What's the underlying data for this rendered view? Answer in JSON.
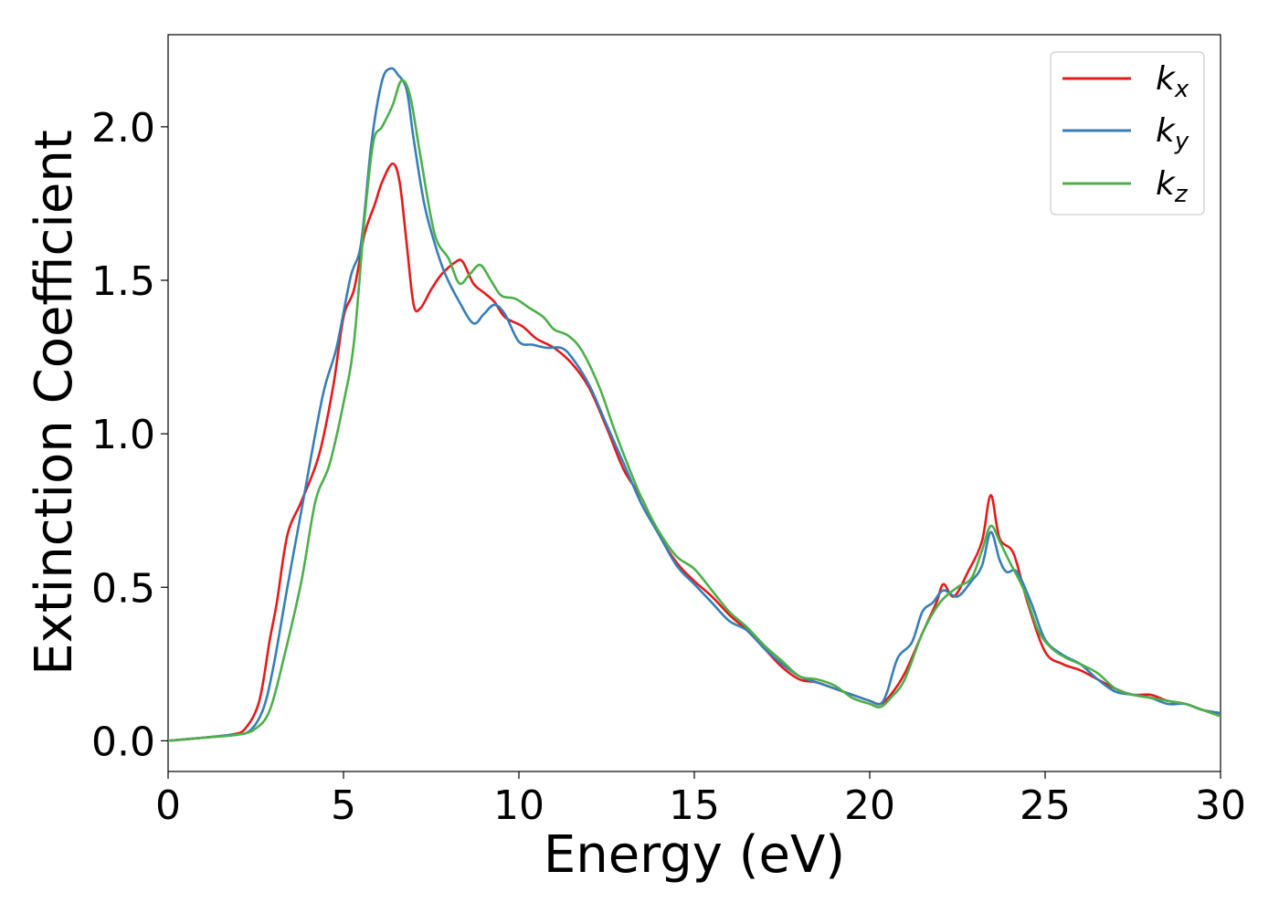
{
  "chart_data": {
    "type": "line",
    "xlabel": "Energy (eV)",
    "ylabel": "Extinction Coefficient",
    "xlim": [
      0,
      30
    ],
    "ylim": [
      -0.1,
      2.3
    ],
    "xticks": [
      0,
      5,
      10,
      15,
      20,
      25,
      30
    ],
    "xtick_labels": [
      "0",
      "5",
      "10",
      "15",
      "20",
      "25",
      "30"
    ],
    "yticks": [
      0.0,
      0.5,
      1.0,
      1.5,
      2.0
    ],
    "ytick_labels": [
      "0.0",
      "0.5",
      "1.0",
      "1.5",
      "2.0"
    ],
    "grid": false,
    "legend_position": "top-right",
    "series": [
      {
        "name": "kx",
        "legend_base": "k",
        "legend_sub": "x",
        "color": "#e41a1c",
        "points": [
          [
            0,
            0
          ],
          [
            1,
            0.01
          ],
          [
            1.8,
            0.02
          ],
          [
            2.2,
            0.04
          ],
          [
            2.6,
            0.13
          ],
          [
            2.9,
            0.33
          ],
          [
            3.1,
            0.45
          ],
          [
            3.4,
            0.67
          ],
          [
            3.8,
            0.78
          ],
          [
            4.3,
            0.93
          ],
          [
            4.7,
            1.15
          ],
          [
            5,
            1.38
          ],
          [
            5.3,
            1.47
          ],
          [
            5.6,
            1.65
          ],
          [
            5.9,
            1.75
          ],
          [
            6.1,
            1.82
          ],
          [
            6.4,
            1.88
          ],
          [
            6.6,
            1.82
          ],
          [
            6.8,
            1.62
          ],
          [
            7,
            1.42
          ],
          [
            7.2,
            1.41
          ],
          [
            7.5,
            1.47
          ],
          [
            7.8,
            1.52
          ],
          [
            8.2,
            1.56
          ],
          [
            8.4,
            1.56
          ],
          [
            8.7,
            1.49
          ],
          [
            9,
            1.46
          ],
          [
            9.3,
            1.43
          ],
          [
            9.6,
            1.38
          ],
          [
            10.1,
            1.35
          ],
          [
            10.5,
            1.31
          ],
          [
            11,
            1.28
          ],
          [
            11.5,
            1.23
          ],
          [
            12,
            1.15
          ],
          [
            12.5,
            1.02
          ],
          [
            13,
            0.88
          ],
          [
            13.5,
            0.79
          ],
          [
            14,
            0.67
          ],
          [
            14.5,
            0.58
          ],
          [
            15,
            0.52
          ],
          [
            15.5,
            0.47
          ],
          [
            16,
            0.41
          ],
          [
            16.5,
            0.36
          ],
          [
            17,
            0.3
          ],
          [
            17.5,
            0.24
          ],
          [
            18,
            0.2
          ],
          [
            18.5,
            0.19
          ],
          [
            19,
            0.17
          ],
          [
            19.5,
            0.15
          ],
          [
            20,
            0.13
          ],
          [
            20.3,
            0.12
          ],
          [
            20.6,
            0.15
          ],
          [
            21,
            0.22
          ],
          [
            21.5,
            0.35
          ],
          [
            21.9,
            0.45
          ],
          [
            22.1,
            0.51
          ],
          [
            22.4,
            0.47
          ],
          [
            22.8,
            0.55
          ],
          [
            23.2,
            0.65
          ],
          [
            23.45,
            0.8
          ],
          [
            23.7,
            0.66
          ],
          [
            24.1,
            0.61
          ],
          [
            24.5,
            0.45
          ],
          [
            25,
            0.29
          ],
          [
            25.5,
            0.25
          ],
          [
            26,
            0.23
          ],
          [
            26.5,
            0.2
          ],
          [
            27,
            0.17
          ],
          [
            27.5,
            0.15
          ],
          [
            28,
            0.15
          ],
          [
            28.5,
            0.13
          ],
          [
            29,
            0.12
          ],
          [
            29.5,
            0.1
          ],
          [
            30,
            0.09
          ]
        ]
      },
      {
        "name": "ky",
        "legend_base": "k",
        "legend_sub": "y",
        "color": "#377eb8",
        "points": [
          [
            0,
            0
          ],
          [
            1,
            0.01
          ],
          [
            1.8,
            0.02
          ],
          [
            2.3,
            0.03
          ],
          [
            2.7,
            0.1
          ],
          [
            3,
            0.24
          ],
          [
            3.4,
            0.5
          ],
          [
            3.8,
            0.75
          ],
          [
            4.4,
            1.12
          ],
          [
            4.8,
            1.28
          ],
          [
            5.2,
            1.51
          ],
          [
            5.5,
            1.62
          ],
          [
            5.8,
            1.95
          ],
          [
            6.1,
            2.15
          ],
          [
            6.35,
            2.19
          ],
          [
            6.55,
            2.17
          ],
          [
            6.8,
            2.12
          ],
          [
            7,
            1.96
          ],
          [
            7.3,
            1.75
          ],
          [
            7.6,
            1.62
          ],
          [
            7.9,
            1.52
          ],
          [
            8.3,
            1.43
          ],
          [
            8.7,
            1.36
          ],
          [
            9,
            1.39
          ],
          [
            9.3,
            1.42
          ],
          [
            9.6,
            1.39
          ],
          [
            10,
            1.3
          ],
          [
            10.4,
            1.29
          ],
          [
            10.8,
            1.28
          ],
          [
            11.2,
            1.28
          ],
          [
            11.5,
            1.25
          ],
          [
            12,
            1.16
          ],
          [
            12.5,
            1.03
          ],
          [
            13,
            0.9
          ],
          [
            13.5,
            0.77
          ],
          [
            14,
            0.67
          ],
          [
            14.5,
            0.57
          ],
          [
            15,
            0.51
          ],
          [
            15.5,
            0.45
          ],
          [
            16,
            0.39
          ],
          [
            16.5,
            0.36
          ],
          [
            17,
            0.3
          ],
          [
            17.5,
            0.25
          ],
          [
            18,
            0.21
          ],
          [
            18.5,
            0.19
          ],
          [
            19,
            0.17
          ],
          [
            19.5,
            0.15
          ],
          [
            20,
            0.13
          ],
          [
            20.3,
            0.12
          ],
          [
            20.5,
            0.16
          ],
          [
            20.8,
            0.27
          ],
          [
            21.2,
            0.32
          ],
          [
            21.5,
            0.42
          ],
          [
            21.8,
            0.45
          ],
          [
            22.1,
            0.49
          ],
          [
            22.5,
            0.47
          ],
          [
            22.9,
            0.52
          ],
          [
            23.2,
            0.57
          ],
          [
            23.45,
            0.68
          ],
          [
            23.7,
            0.59
          ],
          [
            23.9,
            0.55
          ],
          [
            24.2,
            0.55
          ],
          [
            24.6,
            0.45
          ],
          [
            25,
            0.33
          ],
          [
            25.5,
            0.28
          ],
          [
            26,
            0.25
          ],
          [
            26.5,
            0.2
          ],
          [
            27,
            0.16
          ],
          [
            27.5,
            0.15
          ],
          [
            28,
            0.14
          ],
          [
            28.5,
            0.12
          ],
          [
            29,
            0.12
          ],
          [
            29.5,
            0.1
          ],
          [
            30,
            0.09
          ]
        ]
      },
      {
        "name": "kz",
        "legend_base": "k",
        "legend_sub": "z",
        "color": "#4daf4a",
        "points": [
          [
            0,
            0
          ],
          [
            1,
            0.01
          ],
          [
            2,
            0.02
          ],
          [
            2.5,
            0.04
          ],
          [
            2.9,
            0.1
          ],
          [
            3.3,
            0.27
          ],
          [
            3.8,
            0.52
          ],
          [
            4.2,
            0.78
          ],
          [
            4.6,
            0.9
          ],
          [
            5,
            1.1
          ],
          [
            5.3,
            1.3
          ],
          [
            5.6,
            1.7
          ],
          [
            5.85,
            1.95
          ],
          [
            6.1,
            2
          ],
          [
            6.4,
            2.07
          ],
          [
            6.65,
            2.15
          ],
          [
            6.9,
            2.1
          ],
          [
            7.2,
            1.9
          ],
          [
            7.6,
            1.65
          ],
          [
            8,
            1.57
          ],
          [
            8.3,
            1.49
          ],
          [
            8.6,
            1.52
          ],
          [
            8.9,
            1.55
          ],
          [
            9.2,
            1.5
          ],
          [
            9.5,
            1.45
          ],
          [
            9.9,
            1.44
          ],
          [
            10.3,
            1.41
          ],
          [
            10.7,
            1.38
          ],
          [
            11,
            1.34
          ],
          [
            11.4,
            1.32
          ],
          [
            11.8,
            1.27
          ],
          [
            12.3,
            1.15
          ],
          [
            12.7,
            1.02
          ],
          [
            13.1,
            0.9
          ],
          [
            13.5,
            0.79
          ],
          [
            14,
            0.68
          ],
          [
            14.5,
            0.6
          ],
          [
            15,
            0.56
          ],
          [
            15.5,
            0.49
          ],
          [
            16,
            0.42
          ],
          [
            16.5,
            0.37
          ],
          [
            17,
            0.31
          ],
          [
            17.5,
            0.26
          ],
          [
            18,
            0.21
          ],
          [
            18.5,
            0.2
          ],
          [
            19,
            0.18
          ],
          [
            19.5,
            0.14
          ],
          [
            20,
            0.12
          ],
          [
            20.3,
            0.11
          ],
          [
            20.6,
            0.14
          ],
          [
            21,
            0.2
          ],
          [
            21.5,
            0.35
          ],
          [
            22,
            0.45
          ],
          [
            22.5,
            0.5
          ],
          [
            22.9,
            0.53
          ],
          [
            23.2,
            0.62
          ],
          [
            23.45,
            0.7
          ],
          [
            23.7,
            0.65
          ],
          [
            24,
            0.58
          ],
          [
            24.4,
            0.49
          ],
          [
            24.8,
            0.36
          ],
          [
            25.2,
            0.3
          ],
          [
            25.6,
            0.27
          ],
          [
            26,
            0.25
          ],
          [
            26.5,
            0.22
          ],
          [
            27,
            0.17
          ],
          [
            27.5,
            0.15
          ],
          [
            28,
            0.14
          ],
          [
            28.5,
            0.13
          ],
          [
            29,
            0.12
          ],
          [
            29.5,
            0.1
          ],
          [
            30,
            0.08
          ]
        ]
      }
    ]
  }
}
